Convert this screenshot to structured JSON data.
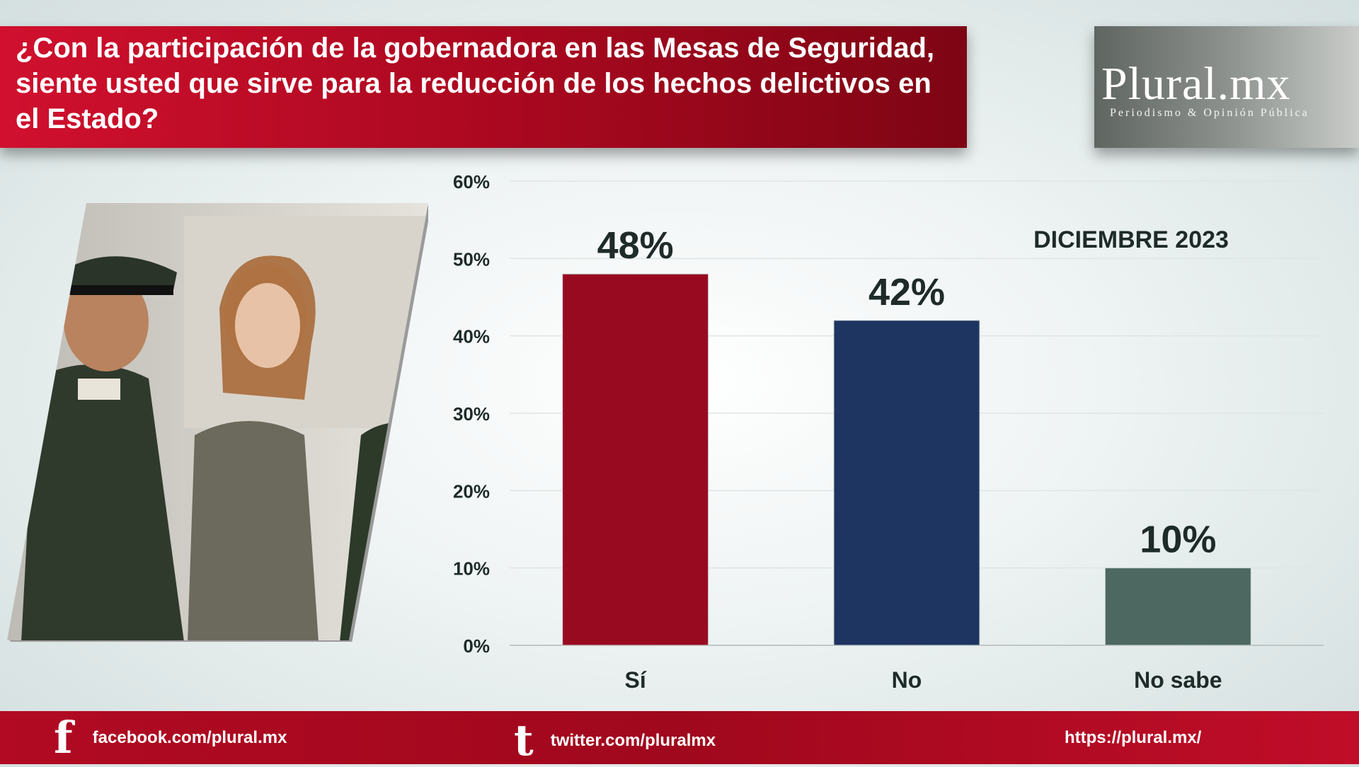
{
  "header": {
    "title": "¿Con la participación de la gobernadora en las Mesas de Seguridad, siente usted que sirve para la reducción de los hechos delictivos en el Estado?"
  },
  "logo": {
    "name": "Plural.mx",
    "tagline": "Periodismo & Opinión Pública"
  },
  "chart_data": {
    "type": "bar",
    "annotation": "DICIEMBRE 2023",
    "categories": [
      "Sí",
      "No",
      "No sabe"
    ],
    "values": [
      48,
      42,
      10
    ],
    "value_labels": [
      "48%",
      "42%",
      "10%"
    ],
    "colors": [
      "#980a20",
      "#1e3461",
      "#4d6860"
    ],
    "ylim": [
      0,
      60
    ],
    "yticks": [
      0,
      10,
      20,
      30,
      40,
      50,
      60
    ],
    "ytick_labels": [
      "0%",
      "10%",
      "20%",
      "30%",
      "40%",
      "50%",
      "60%"
    ],
    "grid": true,
    "legend": "none"
  },
  "footer": {
    "facebook": "facebook.com/plural.mx",
    "twitter": "twitter.com/pluralmx",
    "website": "https://plural.mx/"
  },
  "icons": {
    "facebook": "facebook-icon",
    "twitter": "twitter-icon"
  }
}
